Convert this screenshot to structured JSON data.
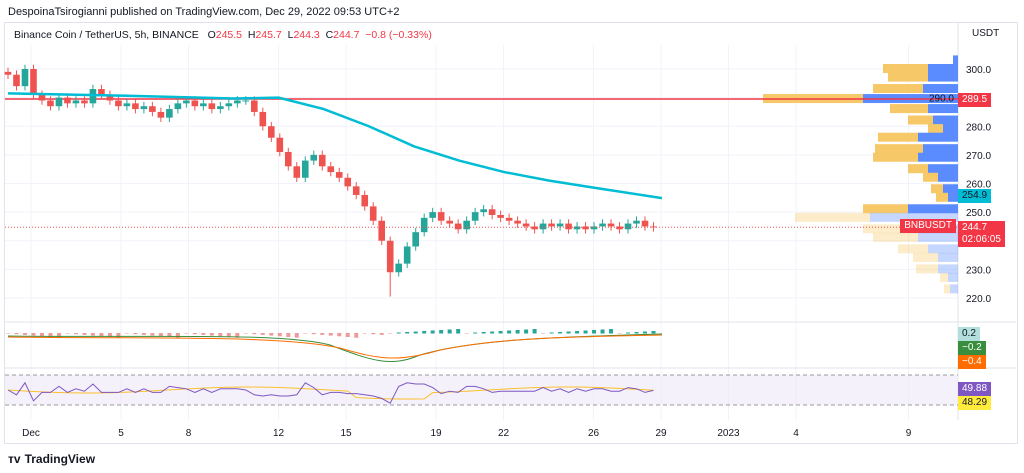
{
  "publisher_line": "DespoinaTsirogianni published on TradingView.com, Dec 29, 2022 09:53 UTC+2",
  "legend": {
    "symbol": "Binance Coin / TetherUS, 5h, BINANCE",
    "o_label": "O",
    "o": "245.5",
    "h_label": "H",
    "h": "245.7",
    "l_label": "L",
    "l": "244.3",
    "c_label": "C",
    "c": "244.7",
    "change": "−0.8 (−0.33%)"
  },
  "currency": "USDT",
  "logo_text": "TradingView",
  "colors": {
    "up": "#26a69a",
    "down": "#ef5350",
    "ma": "#00bcd4",
    "hline": "#f23645",
    "vp_up": "#5b8cff",
    "vp_down": "#f7c868",
    "macd_label": "#b2dfdb",
    "signal_label": "#388e3c",
    "hist_label": "#ff6d00",
    "rsi_label": "#7e57c2",
    "rsi_ma_label": "#ffeb3b"
  },
  "price_labels": {
    "hline": "289.5",
    "ma": "254.9",
    "last": "244.7",
    "countdown": "02:06:05",
    "symbol_tag": "BNBUSDT"
  },
  "macd_labels": [
    "0.2",
    "−0.2",
    "−0.4"
  ],
  "rsi_labels": [
    "49.88",
    "48.29"
  ],
  "chart_data": {
    "type": "candlestick",
    "y_ticks": [
      300.0,
      290.0,
      280.0,
      270.0,
      260.0,
      250.0,
      240.0,
      230.0,
      220.0
    ],
    "y_tick_labels": [
      "300.0",
      "290.0",
      "280.0",
      "270.0",
      "260.0",
      "250.0",
      "240.0",
      "230.0",
      "220.0"
    ],
    "ylim": [
      216,
      306
    ],
    "x_ticks": [
      "Dec",
      "5",
      "8",
      "12",
      "15",
      "19",
      "22",
      "26",
      "29",
      "2023",
      "4",
      "9"
    ],
    "x_tick_days": [
      1,
      5,
      8,
      12,
      15,
      19,
      22,
      26,
      29,
      32,
      35,
      40
    ],
    "xlim_days": [
      0,
      43.5
    ],
    "candle_interval_days": 0.42,
    "closes": [
      298,
      294,
      300,
      291,
      289,
      287,
      290,
      288,
      289,
      288,
      293,
      291,
      289,
      287,
      288,
      286,
      287,
      285,
      283,
      286,
      288,
      289,
      287,
      288,
      286,
      287,
      288,
      289,
      289,
      285,
      280,
      276,
      271,
      266,
      262,
      268,
      270,
      266,
      264,
      262,
      259,
      256,
      252,
      247,
      240,
      229,
      232,
      238,
      243,
      248,
      250,
      247,
      246,
      244,
      247,
      250,
      251,
      249,
      248,
      247,
      246,
      245,
      244,
      246,
      245,
      246,
      244,
      245,
      244,
      245,
      246,
      245,
      244,
      246,
      247,
      245,
      244.7
    ],
    "lows": {
      "index": 45,
      "value": 220.5
    },
    "ma_line": {
      "days": [
        0,
        5,
        10,
        12,
        14,
        16,
        18,
        20,
        22,
        24,
        26,
        29
      ],
      "values": [
        291.5,
        290.7,
        289.7,
        290,
        286,
        280,
        273,
        268,
        264,
        261,
        258.5,
        254.9
      ]
    },
    "horizontal_line": 289.5,
    "volume_profile": {
      "prices": [
        303,
        300,
        297,
        293,
        289.5,
        286,
        282,
        279,
        276,
        272,
        269,
        265,
        262,
        258,
        255,
        251,
        248,
        244,
        241,
        237,
        234,
        230,
        227,
        223
      ],
      "up": [
        5,
        30,
        30,
        35,
        95,
        30,
        25,
        15,
        40,
        35,
        40,
        30,
        20,
        15,
        10,
        50,
        88,
        50,
        40,
        30,
        20,
        20,
        10,
        8
      ],
      "down": [
        0,
        45,
        40,
        50,
        100,
        38,
        25,
        15,
        40,
        48,
        45,
        20,
        15,
        12,
        12,
        45,
        75,
        45,
        45,
        30,
        25,
        22,
        8,
        6
      ]
    },
    "macd": {
      "ylim": [
        -1.2,
        0.6
      ]
    },
    "rsi": {
      "upper": 70,
      "lower": 30,
      "value": 49.88,
      "ma": 48.29
    }
  }
}
